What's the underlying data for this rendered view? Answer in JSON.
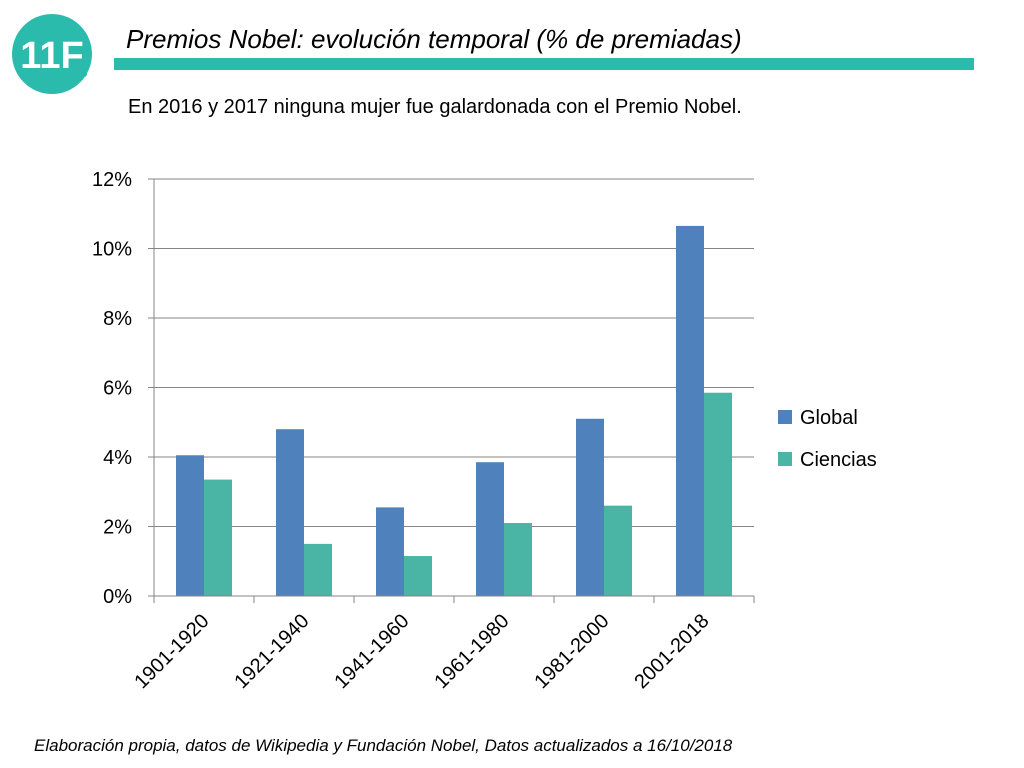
{
  "logo": {
    "text": "11F",
    "color": "#2bbbad"
  },
  "header": {
    "title": "Premios Nobel: evolución temporal (% de premiadas)",
    "accent_color": "#2bbbad"
  },
  "subtitle": "En 2016 y 2017 ninguna mujer fue galardonada con el Premio Nobel.",
  "chart_data": {
    "type": "bar",
    "categories": [
      "1901-1920",
      "1921-1940",
      "1941-1960",
      "1961-1980",
      "1981-2000",
      "2001-2018"
    ],
    "series": [
      {
        "name": "Global",
        "values": [
          4.05,
          4.8,
          2.55,
          3.85,
          5.1,
          10.65
        ],
        "color": "#4f81bd"
      },
      {
        "name": "Ciencias",
        "values": [
          3.35,
          1.5,
          1.15,
          2.1,
          2.6,
          5.85
        ],
        "color": "#4bb5a5"
      }
    ],
    "y_ticks": [
      "0%",
      "2%",
      "4%",
      "6%",
      "8%",
      "10%",
      "12%"
    ],
    "ylim": [
      0,
      12
    ],
    "grid": true,
    "legend": "right"
  },
  "footer": "Elaboración propia, datos de Wikipedia y Fundación Nobel, Datos actualizados a 16/10/2018"
}
